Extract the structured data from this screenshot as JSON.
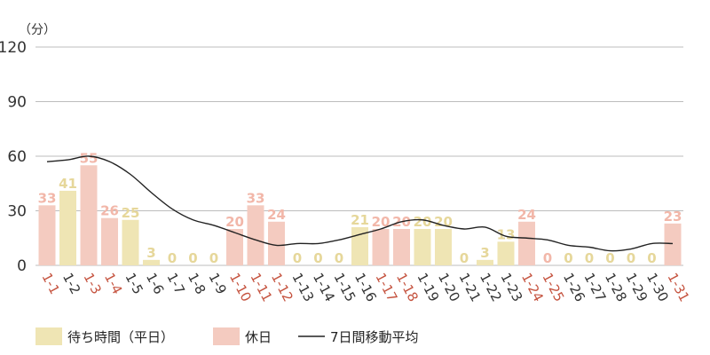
{
  "chart_data": {
    "type": "bar",
    "unit_label": "（分）",
    "yticks": [
      0,
      30,
      60,
      90,
      120
    ],
    "ylim": [
      0,
      120
    ],
    "grid": true,
    "legend_position": "bottom",
    "categories": [
      "1-1",
      "1-2",
      "1-3",
      "1-4",
      "1-5",
      "1-6",
      "1-7",
      "1-8",
      "1-9",
      "1-10",
      "1-11",
      "1-12",
      "1-13",
      "1-14",
      "1-15",
      "1-16",
      "1-17",
      "1-18",
      "1-19",
      "1-20",
      "1-21",
      "1-22",
      "1-23",
      "1-24",
      "1-25",
      "1-26",
      "1-27",
      "1-28",
      "1-29",
      "1-30",
      "1-31"
    ],
    "values": [
      33,
      41,
      55,
      26,
      25,
      3,
      0,
      0,
      0,
      20,
      33,
      24,
      0,
      0,
      0,
      21,
      20,
      20,
      20,
      20,
      0,
      3,
      13,
      24,
      0,
      0,
      0,
      0,
      0,
      0,
      23
    ],
    "holiday": [
      true,
      false,
      true,
      true,
      false,
      false,
      false,
      false,
      false,
      true,
      true,
      true,
      false,
      false,
      false,
      false,
      true,
      true,
      false,
      false,
      false,
      false,
      false,
      true,
      true,
      false,
      false,
      false,
      false,
      false,
      true
    ],
    "moving_average": [
      57,
      58,
      60,
      57,
      50,
      40,
      31,
      25,
      22,
      18,
      14,
      11,
      12,
      12,
      14,
      17,
      20,
      24,
      25,
      22,
      20,
      21,
      16,
      15,
      14,
      11,
      10,
      8,
      9,
      12,
      12
    ],
    "legend": [
      {
        "label": "待ち時間（平日）",
        "color": "#efe5b4"
      },
      {
        "label": "休日",
        "color": "#f4cbc0"
      },
      {
        "label": "7日間移動平均",
        "color": "#222222"
      }
    ],
    "colors": {
      "weekday_bar": "#efe5b4",
      "holiday_bar": "#f4cbc0",
      "weekday_label": "#e6d79a",
      "holiday_label": "#f2b7a9",
      "weekday_xlabel": "#333333",
      "holiday_xlabel": "#c5533f",
      "avg_line": "#222222",
      "grid": "#bdbdbd"
    }
  }
}
